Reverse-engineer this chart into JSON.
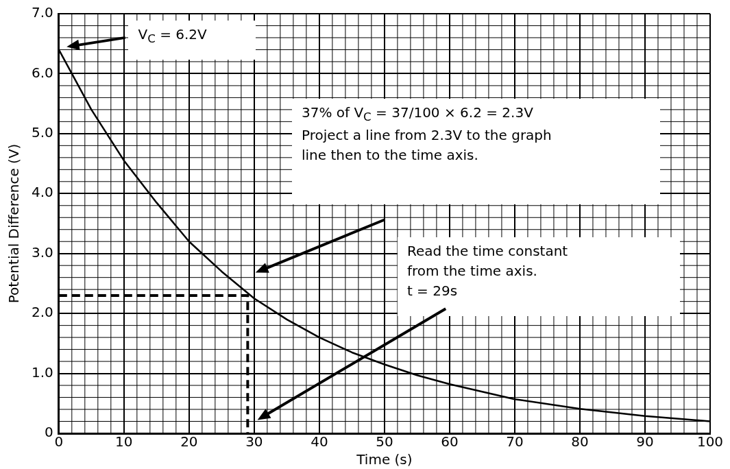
{
  "chart_data": {
    "type": "line",
    "xlabel": "Time (s)",
    "ylabel": "Potential Difference (V)",
    "xlim": [
      0,
      100
    ],
    "xticks": [
      0,
      10,
      20,
      30,
      40,
      50,
      60,
      70,
      80,
      90,
      100
    ],
    "ylim": [
      0,
      7
    ],
    "yticks": [
      0,
      {
        "value": 1,
        "label": "1.0"
      },
      {
        "value": 2,
        "label": "2.0"
      },
      {
        "value": 3,
        "label": "3.0"
      },
      {
        "value": 4,
        "label": "4.0"
      },
      {
        "value": 5,
        "label": "5.0"
      },
      {
        "value": 6,
        "label": "6.0"
      },
      {
        "value": 7,
        "label": "7.0"
      }
    ],
    "grid": true,
    "legend": false,
    "marker": "none",
    "series": [
      {
        "color": "#000000",
        "line_style": "solid",
        "x": [
          0,
          5,
          10,
          15,
          20,
          25,
          30,
          35,
          40,
          45,
          50,
          55,
          60,
          70,
          80,
          90,
          100
        ],
        "values": [
          6.4,
          5.4,
          4.55,
          3.85,
          3.2,
          2.7,
          2.25,
          1.9,
          1.6,
          1.35,
          1.15,
          0.97,
          0.82,
          0.57,
          0.41,
          0.29,
          0.2
        ]
      },
      {
        "color": "#000000",
        "line_style": "dashed",
        "x": [
          0,
          29,
          29
        ],
        "values": [
          2.3,
          2.3,
          0
        ]
      }
    ],
    "annotations": [
      "V$_{C}$ = 6.2V",
      "37% of V$_{C}$ = 37/100 × 6.2 = 2.3V\nProject a line from 2.3V to the graph\nline then to the time axis.",
      "Read the time constant\nfrom the time axis.\nt = 29s"
    ]
  }
}
